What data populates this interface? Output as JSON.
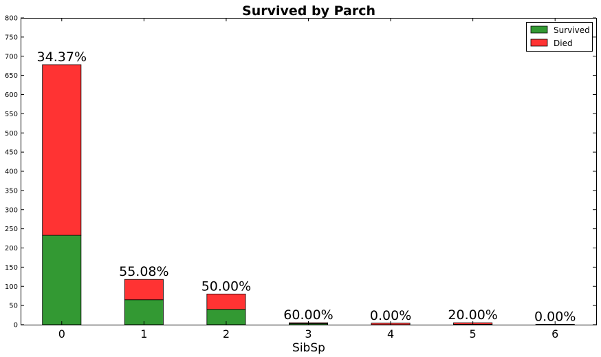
{
  "chart_data": {
    "type": "bar",
    "stacked": true,
    "title": "Survived by Parch",
    "xlabel": "SibSp",
    "ylabel": "",
    "categories": [
      "0",
      "1",
      "2",
      "3",
      "4",
      "5",
      "6"
    ],
    "series": [
      {
        "name": "Survived",
        "color": "#339933",
        "values": [
          233,
          65,
          40,
          3,
          0,
          1,
          0
        ]
      },
      {
        "name": "Died",
        "color": "#ff3333",
        "values": [
          445,
          53,
          40,
          2,
          4,
          4,
          1
        ]
      }
    ],
    "data_labels": [
      "34.37%",
      "55.08%",
      "50.00%",
      "60.00%",
      "0.00%",
      "20.00%",
      "0.00%"
    ],
    "ylim": [
      0,
      800
    ],
    "yticks": [
      "0",
      "50",
      "100",
      "150",
      "200",
      "250",
      "300",
      "350",
      "400",
      "450",
      "500",
      "550",
      "600",
      "650",
      "700",
      "750",
      "800"
    ],
    "grid": false,
    "legend_position": "top-right"
  }
}
